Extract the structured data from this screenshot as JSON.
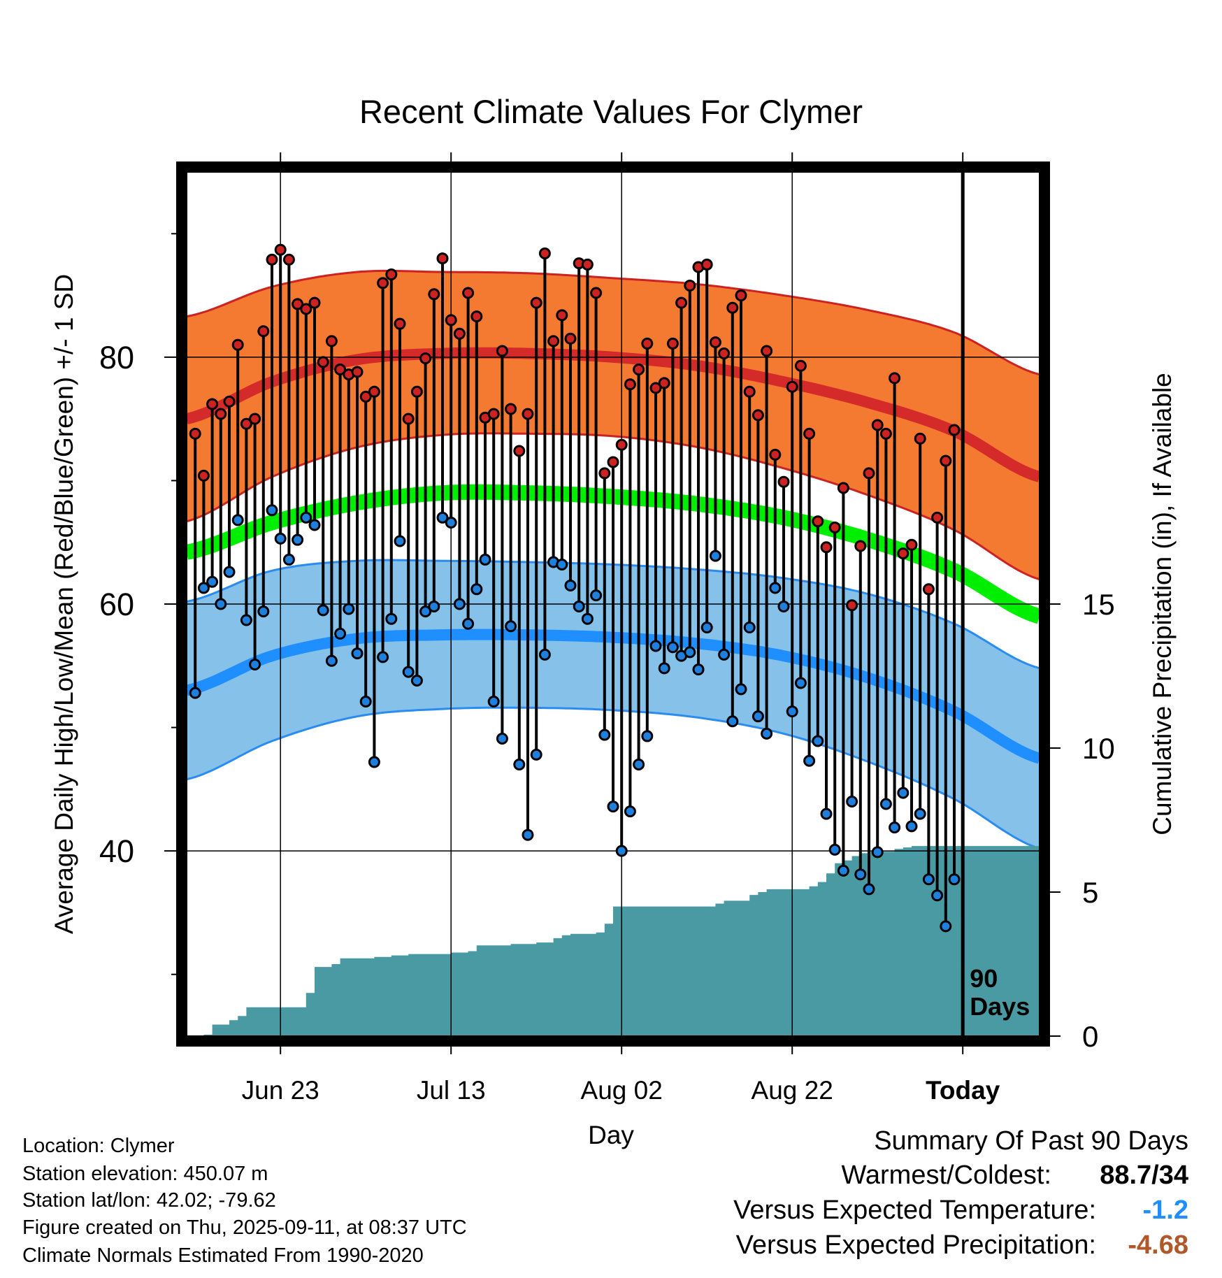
{
  "chart_data": {
    "type": "line",
    "title": "Recent Climate Values For Clymer",
    "xlabel": "Day",
    "ylabel_left": "Average Daily High/Low/Mean (Red/Blue/Green) +/- 1 SD",
    "ylabel_right": "Cumulative Precipitation (in), If Available",
    "x_ticks": [
      "Jun 23",
      "Jul 13",
      "Aug 02",
      "Aug 22",
      "Today"
    ],
    "x_tick_days": [
      11,
      31,
      51,
      71,
      91
    ],
    "x_range_days": [
      0,
      100
    ],
    "ylim_left": [
      25,
      95
    ],
    "y_ticks_left": [
      40,
      60,
      80
    ],
    "ylim_right": [
      0,
      30
    ],
    "y_ticks_right": [
      0,
      5,
      10,
      15
    ],
    "grid": true,
    "today_marker": "90\nDays",
    "start_date": "Jun 12",
    "normals": {
      "days": [
        0,
        10,
        20,
        30,
        40,
        50,
        60,
        70,
        80,
        90,
        100
      ],
      "high_mean": [
        75,
        78,
        79.8,
        80.3,
        80.3,
        80,
        79.3,
        78,
        76.3,
        74,
        70.3
      ],
      "high_sd": [
        8.3,
        7.7,
        7.1,
        6.6,
        6.5,
        6.4,
        6.6,
        7.0,
        7.5,
        8.0,
        8.3
      ],
      "low_mean": [
        53,
        55.8,
        57.2,
        57.5,
        57.5,
        57.3,
        56.8,
        55.8,
        54,
        51.3,
        47.5
      ],
      "low_sd": [
        7.2,
        6.9,
        6.3,
        6.0,
        5.9,
        5.9,
        6.0,
        6.3,
        6.8,
        7.1,
        7.3
      ],
      "mean": [
        64.2,
        66.6,
        68.2,
        69,
        69,
        68.7,
        68.1,
        67,
        65.2,
        62.7,
        59
      ]
    },
    "series": [
      {
        "name": "High",
        "color": "#cc2222",
        "values": [
          73.8,
          70.4,
          76.2,
          75.4,
          76.4,
          81,
          74.6,
          75,
          82.1,
          87.9,
          88.7,
          87.9,
          84.3,
          83.9,
          84.4,
          79.6,
          81.3,
          79,
          78.6,
          78.8,
          76.8,
          77.2,
          86,
          86.7,
          82.7,
          75,
          77.2,
          79.9,
          85.1,
          88,
          83,
          81.9,
          85.2,
          83.3,
          75.1,
          75.4,
          80.5,
          75.8,
          72.4,
          75.4,
          84.4,
          88.4,
          81.3,
          83.4,
          81.5,
          87.6,
          87.5,
          85.2,
          70.6,
          71.5,
          72.9,
          77.8,
          79,
          81.1,
          77.5,
          77.9,
          81.1,
          84.4,
          85.8,
          87.3,
          87.5,
          81.2,
          80.3,
          84,
          85,
          77.2,
          75.3,
          80.5,
          72.1,
          69.9,
          77.6,
          79.3,
          73.8,
          66.7,
          64.6,
          66.2,
          69.4,
          59.9,
          64.7,
          70.6,
          74.5,
          73.8,
          78.3,
          64.1,
          64.8,
          73.4,
          61.2,
          67,
          71.6,
          74.1
        ]
      },
      {
        "name": "Low",
        "color": "#1f7fdd",
        "values": [
          52.8,
          61.3,
          61.8,
          60,
          62.6,
          66.8,
          58.7,
          55.1,
          59.4,
          67.6,
          65.3,
          63.6,
          65.2,
          67,
          66.4,
          59.5,
          55.4,
          57.6,
          59.6,
          56,
          52.1,
          47.2,
          55.7,
          58.8,
          65.1,
          54.5,
          53.8,
          59.4,
          59.8,
          67,
          66.6,
          60,
          58.4,
          61.2,
          63.6,
          52.1,
          49.1,
          58.2,
          47,
          41.3,
          47.8,
          55.9,
          63.4,
          63.2,
          61.5,
          59.8,
          58.8,
          60.7,
          49.4,
          43.6,
          40,
          43.2,
          47,
          49.3,
          56.6,
          54.8,
          56.5,
          55.8,
          56.1,
          54.7,
          58.1,
          63.9,
          55.9,
          50.5,
          53.1,
          58.1,
          50.9,
          49.5,
          61.3,
          59.8,
          51.3,
          53.6,
          47.3,
          48.9,
          43,
          40.1,
          38.4,
          44,
          38.1,
          36.9,
          39.9,
          43.8,
          41.9,
          44.7,
          42,
          43,
          37.7,
          36.4,
          33.9,
          37.7
        ]
      },
      {
        "name": "Cumulative Precipitation",
        "color": "#4a9aa3",
        "values": [
          0,
          0.05,
          0.4,
          0.4,
          0.55,
          0.7,
          1,
          1,
          1,
          1,
          1,
          1,
          1,
          1.5,
          2.4,
          2.4,
          2.5,
          2.7,
          2.7,
          2.7,
          2.7,
          2.75,
          2.75,
          2.8,
          2.8,
          2.85,
          2.85,
          2.85,
          2.85,
          2.85,
          2.9,
          2.9,
          2.95,
          3.15,
          3.15,
          3.15,
          3.15,
          3.2,
          3.2,
          3.2,
          3.25,
          3.25,
          3.4,
          3.5,
          3.55,
          3.55,
          3.55,
          3.6,
          3.9,
          4.5,
          4.5,
          4.5,
          4.5,
          4.5,
          4.5,
          4.5,
          4.5,
          4.5,
          4.5,
          4.5,
          4.5,
          4.6,
          4.7,
          4.7,
          4.7,
          4.9,
          5,
          5.1,
          5.1,
          5.1,
          5.1,
          5.1,
          5.2,
          5.35,
          5.65,
          6,
          6.1,
          6.25,
          6.35,
          6.4,
          6.4,
          6.4,
          6.5,
          6.55,
          6.6,
          6.6,
          6.6,
          6.6,
          6.6,
          6.6,
          6.6
        ]
      }
    ]
  },
  "info": {
    "location": "Location: Clymer",
    "elevation": "Station elevation: 450.07 m",
    "latlon": "Station lat/lon: 42.02; -79.62",
    "created": "Figure created on Thu, 2025-09-11, at 08:37 UTC",
    "normals": "Climate Normals Estimated From 1990-2020"
  },
  "summary": {
    "title": "Summary Of Past 90 Days",
    "warmest_label": "Warmest/Coldest:",
    "warmest_value": "88.7/34",
    "temp_label": "Versus Expected Temperature:",
    "temp_value": "-1.2",
    "temp_color": "#1f8fff",
    "precip_label": "Versus Expected Precipitation:",
    "precip_value": "-4.68",
    "precip_color": "#b0582a"
  },
  "colors": {
    "high_band": "#f47a32",
    "high_line": "#d42a2a",
    "low_band": "#85c1e8",
    "low_line": "#1f8fff",
    "mean_line": "#00ee00",
    "precip_fill": "#4a9aa3"
  }
}
